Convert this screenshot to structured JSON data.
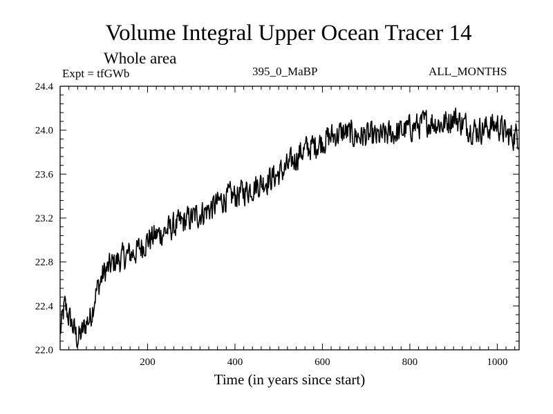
{
  "title": "Volume Integral Upper Ocean Tracer 14",
  "subtitle": "Whole area",
  "expt_label": "Expt = tfGWb",
  "period_label": "395_0_MaBP",
  "months_label": "ALL_MONTHS",
  "chart_data": {
    "type": "line",
    "title": "Volume Integral Upper Ocean Tracer 14",
    "xlabel": "Time (in years since start)",
    "ylabel": "",
    "xlim": [
      0,
      1050
    ],
    "ylim": [
      22.0,
      24.4
    ],
    "x_ticks": [
      200,
      400,
      600,
      800,
      1000
    ],
    "x_tick_labels": [
      "200",
      "400",
      "600",
      "800",
      "1000"
    ],
    "y_ticks": [
      22.0,
      22.4,
      22.8,
      23.2,
      23.6,
      24.0,
      24.4
    ],
    "y_tick_labels": [
      "22.0",
      "22.4",
      "22.8",
      "23.2",
      "23.6",
      "24.0",
      "24.4"
    ],
    "series": [
      {
        "name": "tfGWb",
        "x": [
          0,
          10,
          20,
          30,
          40,
          50,
          60,
          70,
          80,
          90,
          100,
          125,
          150,
          175,
          200,
          225,
          250,
          275,
          300,
          325,
          350,
          375,
          400,
          425,
          450,
          475,
          500,
          525,
          550,
          575,
          600,
          625,
          650,
          675,
          700,
          725,
          750,
          775,
          800,
          825,
          850,
          875,
          900,
          925,
          950,
          975,
          1000,
          1025,
          1050
        ],
        "values": [
          22.15,
          22.4,
          22.3,
          22.2,
          22.1,
          22.15,
          22.25,
          22.3,
          22.5,
          22.6,
          22.7,
          22.8,
          22.85,
          22.9,
          23.0,
          23.05,
          23.1,
          23.15,
          23.2,
          23.25,
          23.3,
          23.38,
          23.4,
          23.45,
          23.5,
          23.55,
          23.6,
          23.68,
          23.8,
          23.85,
          23.9,
          23.95,
          23.98,
          23.95,
          23.95,
          23.93,
          23.96,
          23.98,
          24.02,
          24.05,
          24.08,
          24.05,
          24.12,
          24.05,
          24.0,
          24.02,
          24.05,
          23.95,
          23.95
        ]
      }
    ]
  }
}
